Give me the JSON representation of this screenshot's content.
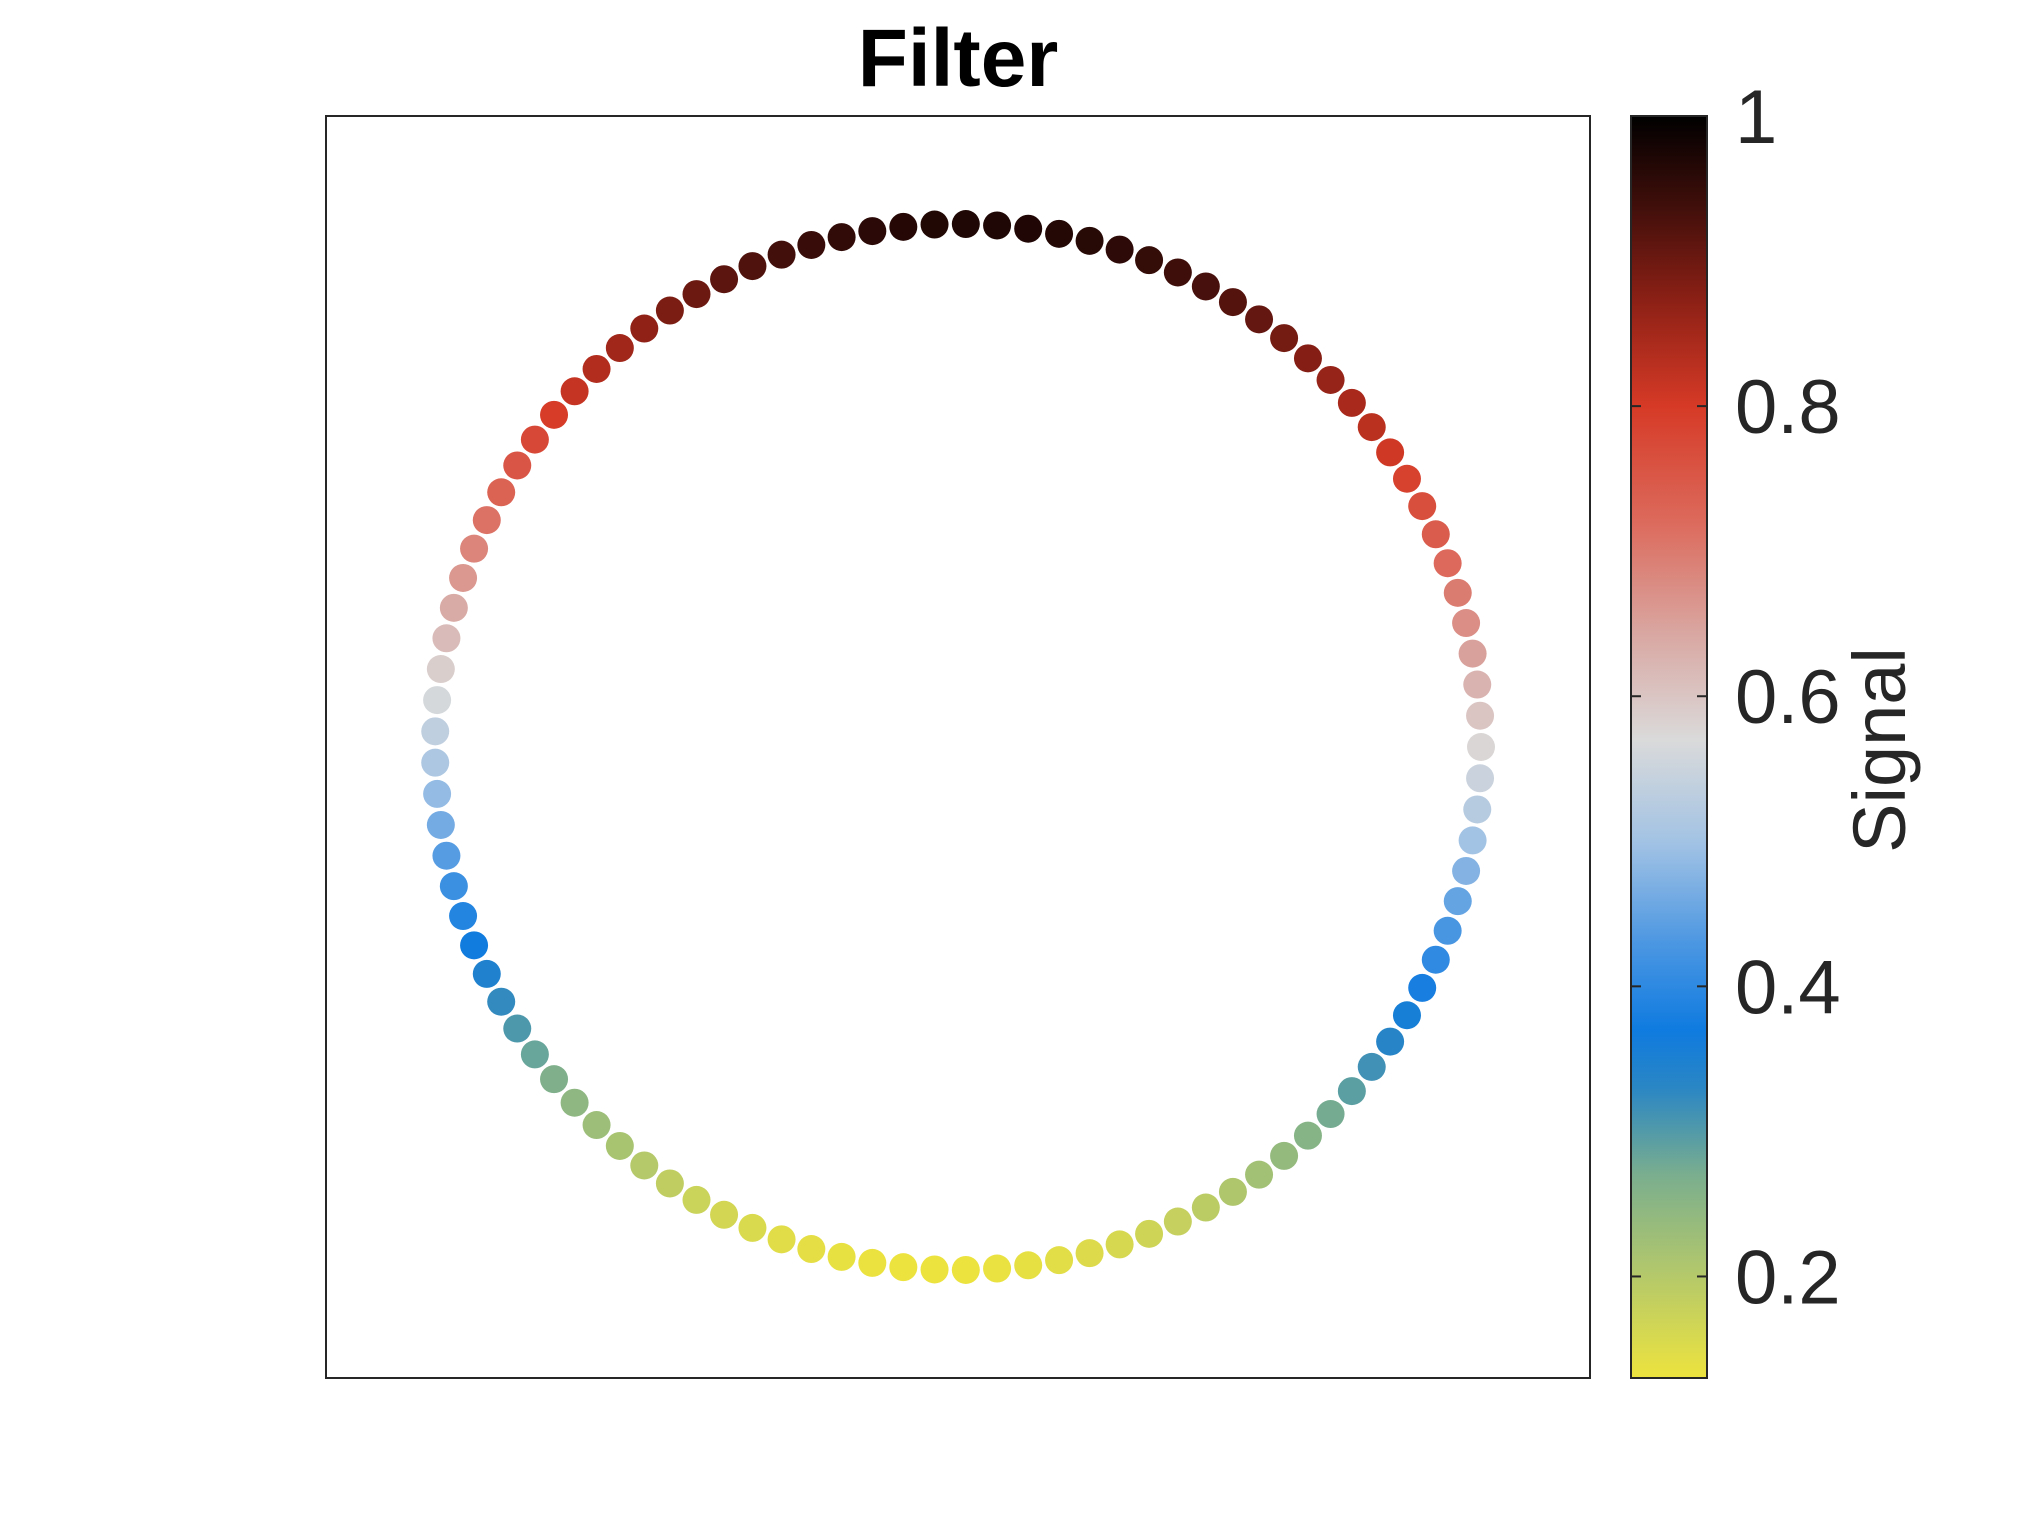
{
  "chart_data": {
    "type": "scatter",
    "title": "Filter",
    "xlabel": "",
    "ylabel": "",
    "grid": false,
    "axis_ticks_shown": false,
    "point_count": 105,
    "layout_shape": "ring",
    "signal_formula": "0.55 + 0.42 * sin(theta + 0.06)",
    "signal_wrap_at_angle_deg": 0,
    "colorbar": {
      "label": "Signal",
      "range": [
        0.13,
        1.0
      ],
      "ticks": [
        0.2,
        0.4,
        0.6,
        0.8,
        1
      ],
      "tick_labels": [
        "0.2",
        "0.4",
        "0.6",
        "0.8",
        "1"
      ],
      "colormap": [
        {
          "value": 0.13,
          "color": "#EDE33E"
        },
        {
          "value": 0.2,
          "color": "#B5C96A"
        },
        {
          "value": 0.27,
          "color": "#7AAE8E"
        },
        {
          "value": 0.33,
          "color": "#2A86C4"
        },
        {
          "value": 0.37,
          "color": "#0F7BE0"
        },
        {
          "value": 0.43,
          "color": "#4C97E2"
        },
        {
          "value": 0.5,
          "color": "#A3C3E4"
        },
        {
          "value": 0.57,
          "color": "#DADADA"
        },
        {
          "value": 0.64,
          "color": "#D9A9A4"
        },
        {
          "value": 0.72,
          "color": "#DC6A5C"
        },
        {
          "value": 0.8,
          "color": "#D63A26"
        },
        {
          "value": 0.87,
          "color": "#8F2116"
        },
        {
          "value": 0.94,
          "color": "#3E0E0A"
        },
        {
          "value": 1.0,
          "color": "#000000"
        }
      ]
    }
  }
}
